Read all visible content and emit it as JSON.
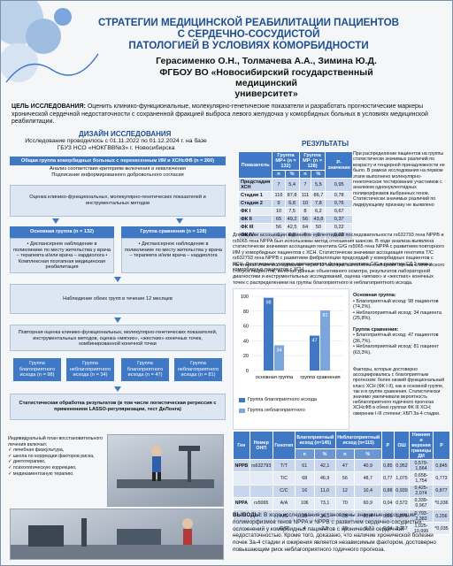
{
  "header": {
    "title_lines": [
      "СТРАТЕГИИ МЕДИЦИНСКОЙ РЕАБИЛИТАЦИИ ПАЦИЕНТОВ",
      "С СЕРДЕЧНО-СОСУДИСТОЙ",
      "ПАТОЛОГИЕЙ В УСЛОВИЯХ КОМОРБИДНОСТИ"
    ],
    "authors": "Герасименко О.Н., Толмачева А.А., Зимина Ю.Д.",
    "org_lines": [
      "ФГБОУ ВО «Новосибирский государственный медицинский",
      "университет»"
    ]
  },
  "goal": {
    "label": "ЦЕЛЬ ИССЛЕДОВАНИЯ:",
    "text": "Оценить клинико-функциональные, молекулярно-генетические показатели и разработать прогностические маркеры хронической сердечной недостаточности с сохраненной фракцией выброса левого желудочка у коморбидных больных в условиях медицинской реабилитации."
  },
  "design": {
    "title": "ДИЗАЙН ИССЛЕДОВАНИЯ",
    "sub_lines": [
      "Исследование проводилось с 01.11.2022 по 01.12.2024 г. на базе",
      "ГБУЗ НСО «НОКГВВ№3» г. Новосибирска"
    ],
    "box1": "Общая группа коморбидных больных с перенесенным ИМ и ХСНсФВ (n = 260)",
    "box1_sub": [
      "Анализ соответствия критериям включения и невключения",
      "Подписание информированного добровольного согласия"
    ],
    "box2": "Оценка клинико-функциональных, молекулярно-генетических показателей и инструментальных методов",
    "main_group": "Основная группа (n = 132)",
    "compare_group": "Группа сравнения (n = 128)",
    "main_desc": "• Диспансерное наблюдение в поликлинике по месту жительства у врача – терапевта и/или врача – кардиолога • Комплексная поэтапная медицинская реабилитация",
    "compare_desc": "• Диспансерное наблюдение в поликлинике по месту жительства у врача – терапевта и/или врача – кардиолога",
    "follow": "Наблюдение обеих групп в течение 12 месяцев",
    "repeat": "Повторная оценка клинико-функциональных, молекулярно-генетических показателей, инструментальных методов, оценка «мягких», «жестких» конечных точек, комбинированной конечной точки",
    "outcomes": [
      "Группа благоприятного исхода (n = 98)",
      "Группа неблагоприятного исхода (n = 34)",
      "Группа благоприятного исхода (n = 47)",
      "Группа неблагоприятного исхода (n = 81)"
    ],
    "stats": "Статистическая обработка результатов (в том числе логистическая регрессия с применением LASSO-регуляризации, тест ДеЛонга)"
  },
  "results": {
    "title": "РЕЗУЛЬТАТЫ",
    "table1": {
      "col_indicator": "Показатель",
      "col_main": "Группа МР+ (n = 132)",
      "col_compare": "Группа МР- (n = 128)",
      "col_p": "P-значение",
      "sub": [
        "n",
        "%",
        "n",
        "%"
      ],
      "rows": [
        {
          "label": "Предстадия ХСН",
          "v": [
            "7",
            "5,4",
            "7",
            "5,5",
            "0,95"
          ]
        },
        {
          "label": "Стадия 1",
          "v": [
            "116",
            "87,8",
            "111",
            "86,7",
            "0,78"
          ]
        },
        {
          "label": "Стадия 2",
          "v": [
            "9",
            "6,8",
            "10",
            "7,8",
            "0,76"
          ]
        },
        {
          "label": "ФК I",
          "v": [
            "10",
            "7,5",
            "8",
            "6,2",
            "0,67"
          ]
        },
        {
          "label": "ФК II",
          "v": [
            "65",
            "49,2",
            "56",
            "43,8",
            "0,37"
          ]
        },
        {
          "label": "ФК III",
          "v": [
            "56",
            "42,5",
            "64",
            "50",
            "0,22"
          ]
        },
        {
          "label": "ФК IV",
          "v": [
            "1",
            "0,8",
            "0",
            "0",
            "0,32"
          ]
        }
      ]
    },
    "side_text": "При распределении пациентов на группы статистически значимых различий по возрасту и тендерной принадлежности не было. В рамках исследования на первом этапе выполнено молекулярно-генетическое тестирование участников с анализом однонуклеотидных полиморфизмов выбранных генов. Статистически значимых различий по лидирующему признаку не выявлено",
    "assoc_text": "Для оценки ассоциации вариантов нуклеотидной последовательности rs632793 гена NPPB и rs5065 гена NPPA был использован метод отношения шансов. В ходе анализа выявлена статистически значимая ассоциация генотипа G/G rs5065 гена NPPA с развитием повторного ИМ у коморбидных пациентов с ХСН. Статистически значимая ассоциация генотипа T/C rs632793 гена NPPB с развитием фибрилляции предсердий у коморбидных пациентов с ХСН. Достоверная условно-протективная функция генотипа C/C в развитии СД 2 типа у коморбидных пациентов с ХСН.",
    "second_stage": "На втором этапе исследования через 12 месяцев выполнена повторная оценка клинического статуса пациентов, включая данные объективного осмотра, результатов лабораторной диагностики и инструментальных исследований, оценка «мягких» и «жестких» конечных точек с распределением на группы благоприятного и неблагоприятного исхода.",
    "main_summary_title": "Основная группа:",
    "main_summary": [
      "• Благоприятный исход: 98 пациентов (74,2%).",
      "• Неблагоприятный исход: 34 пациента (25,8%)."
    ],
    "compare_summary_title": "Группа сравнения:",
    "compare_summary": [
      "• Благоприятный исход: 47 пациентов (36,7%).",
      "• Неблагоприятный исход: 81 пациент (63,3%)."
    ],
    "factors": "Факторы, которые достоверно ассоциировались с благоприятным прогнозом: более низкий функциональный класс ХСН (ФК I-II), как в основной группе, так и в группе сравнения. Статистически значимо увеличивали вероятность неблагоприятного годичного прогноза ХСНсФВ в обеих группах ФК III ХСН; ожирение I-III степени; ХБП За-4 стадии.",
    "table2": {
      "headers": [
        "Ген",
        "Номер ОНП",
        "Генотип",
        "Благоприятный исход (n=145)",
        "Неблагоприятный исход (n=115)",
        "P",
        "ОШ",
        "Нижняя и верхняя границы ДИ",
        "P"
      ],
      "sub": [
        "n",
        "%",
        "n",
        "%"
      ],
      "rows": [
        {
          "gene": "NPPB",
          "snp": "rs632793",
          "v": [
            "T/T",
            "61",
            "42,1",
            "47",
            "40,9",
            "0,85",
            "0,952",
            "0,579-1,564",
            "0,845"
          ]
        },
        {
          "gene": "",
          "snp": "",
          "v": [
            "T/C",
            "68",
            "46,9",
            "56",
            "48,7",
            "0,77",
            "1,075",
            "0,658-1,754",
            "0,773"
          ]
        },
        {
          "gene": "",
          "snp": "",
          "v": [
            "C/C",
            "16",
            "11,0",
            "12",
            "10,4",
            "0,88",
            "0,939",
            "0,425-2,074",
            "0,877"
          ]
        },
        {
          "gene": "NPPA",
          "snp": "rs5065",
          "v": [
            "A/A",
            "106",
            "73,1",
            "70",
            "60,9",
            "0,04",
            "0,572",
            "0,339-0,967",
            "*0,036"
          ]
        },
        {
          "gene": "",
          "snp": "",
          "v": [
            "A/G",
            "35",
            "24,1",
            "35",
            "30,4",
            "0,26",
            "1,375",
            "0,793-2,383",
            "0,256"
          ]
        },
        {
          "gene": "",
          "snp": "",
          "v": [
            "G/G",
            "4",
            "2,8",
            "10",
            "8,7",
            "0,04",
            "3,357",
            "1,025-10,999",
            "*0,035"
          ]
        }
      ]
    }
  },
  "chart_data": {
    "type": "bar",
    "categories": [
      "основная группа",
      "группа сравнения"
    ],
    "series": [
      {
        "name": "Группа благоприятного исхода",
        "values": [
          98,
          47
        ],
        "color": "#3f78c4"
      },
      {
        "name": "Группа неблагоприятного",
        "values": [
          34,
          81
        ],
        "color": "#7aa6dc"
      }
    ],
    "ylim": [
      0,
      100
    ],
    "yticks": [
      0,
      20,
      40,
      60,
      80,
      100
    ],
    "legend": "bottom"
  },
  "plan": {
    "title": "Индивидуальный план восстановительного лечения включал:",
    "items": [
      "лечебная физкультура,",
      "школа по коррекции факторов риска,",
      "диетотерапию,",
      "психологическую коррекцию,",
      "медикаментозную терапию."
    ]
  },
  "conclusion": {
    "label": "ВЫВОДЫ:",
    "text": "В ходе исследования установлены значимые ассоциации полиморфизмов генов NPPA и NPPB с развитием сердечно-сосудистых осложнений у коморбидных пациентов с хронической сердечной недостаточностью. Кроме того, доказано, что наличие хронической болезни почек За-4 стадии и ожирения является независимым фактором, достоверно повышающим риск неблагоприятного годичного прогноза."
  },
  "colors": {
    "accent": "#1d4e8f",
    "box_blue": "#3f78c4",
    "bar_light": "#7aa6dc"
  }
}
